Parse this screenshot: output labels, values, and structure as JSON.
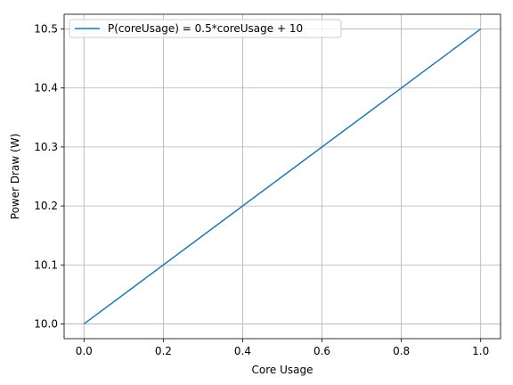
{
  "chart_data": {
    "type": "line",
    "x": [
      0.0,
      1.0
    ],
    "series": [
      {
        "name": "P(coreUsage) = 0.5*coreUsage + 10",
        "values": [
          10.0,
          10.5
        ],
        "color": "#1f77b4"
      }
    ],
    "xlabel": "Core Usage",
    "ylabel": "Power Draw (W)",
    "xlim": [
      -0.05,
      1.05
    ],
    "ylim": [
      9.975,
      10.525
    ],
    "xticks": [
      0.0,
      0.2,
      0.4,
      0.6,
      0.8,
      1.0
    ],
    "xtick_labels": [
      "0.0",
      "0.2",
      "0.4",
      "0.6",
      "0.8",
      "1.0"
    ],
    "yticks": [
      10.0,
      10.1,
      10.2,
      10.3,
      10.4,
      10.5
    ],
    "ytick_labels": [
      "10.0",
      "10.1",
      "10.2",
      "10.3",
      "10.4",
      "10.5"
    ],
    "grid": true,
    "grid_color": "#b0b0b0",
    "legend_position": "upper-left"
  }
}
